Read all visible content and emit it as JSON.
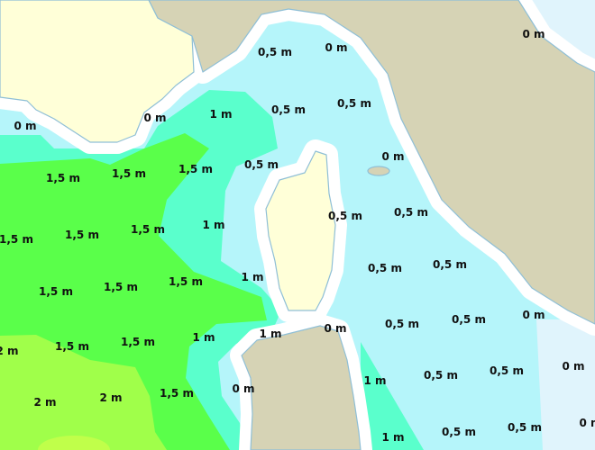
{
  "map": {
    "type": "wave height forecast map",
    "legend_colors": {
      "0 m": "#ffffff",
      "0 m offshore": "#e0f4fc",
      "0,5 m": "#b5f5fa",
      "1 m": "#5affcc",
      "1,5 m": "#5aff4a",
      "2 m": "#a0ff4a",
      "land_france_corsica": "#ffffd8",
      "land_italy_sardinia": "#d6d3b5",
      "coastline": "#8fbfd6"
    },
    "labels": [
      "0 m",
      "0,5 m",
      "0 m",
      "1 m",
      "0,5 m",
      "0,5 m",
      "0 m",
      "0 m",
      "0 m",
      "1,5 m",
      "1,5 m",
      "1,5 m",
      "0,5 m",
      "1 m",
      "0,5 m",
      "0,5 m",
      "1,5 m",
      "1,5 m",
      "1,5 m",
      "0,5 m",
      "0,5 m",
      "1,5 m",
      "1,5 m",
      "1,5 m",
      "1 m",
      "0,5 m",
      "0,5 m",
      "0 m",
      "0 m",
      "1 m",
      "2 m",
      "1,5 m",
      "1,5 m",
      "1 m",
      "0,5 m",
      "0,5 m",
      "0 m",
      "1 m",
      "2 m",
      "2 m",
      "1,5 m",
      "0 m",
      "0 m",
      "1 m",
      "0,5 m",
      "0,5 m"
    ]
  }
}
